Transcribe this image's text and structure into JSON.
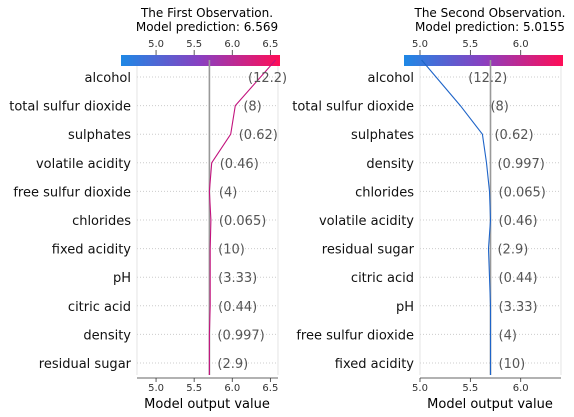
{
  "chart_data": [
    {
      "type": "line",
      "chart_kind": "shap-decision-plot",
      "title_line1": "The First Observation.",
      "title_line2": "Model prediction: 6.569",
      "xlabel": "Model output value",
      "xlim": [
        4.75,
        6.6
      ],
      "xticks": [
        "5.0",
        "5.5",
        "6.0",
        "6.5"
      ],
      "base_value": 5.7,
      "line_color": "#c2127d",
      "features": [
        "alcohol",
        "total sulfur dioxide",
        "sulphates",
        "volatile acidity",
        "free sulfur dioxide",
        "chlorides",
        "fixed acidity",
        "pH",
        "citric acid",
        "density",
        "residual sugar"
      ],
      "feature_values": [
        "(12.2)",
        "(8)",
        "(0.62)",
        "(0.46)",
        "(4)",
        "(0.065)",
        "(10)",
        "(3.33)",
        "(0.44)",
        "(0.997)",
        "(2.9)"
      ],
      "cumulative_output": [
        6.569,
        6.04,
        5.98,
        5.73,
        5.7,
        5.72,
        5.71,
        5.71,
        5.71,
        5.7,
        5.7,
        5.7
      ]
    },
    {
      "type": "line",
      "chart_kind": "shap-decision-plot",
      "title_line1": "The Second Observation.",
      "title_line2": "Model prediction: 5.0155",
      "xlabel": "Model output value",
      "xlim": [
        5.0,
        6.4
      ],
      "xticks": [
        "5.0",
        "5.5",
        "6.0"
      ],
      "base_value": 5.7,
      "line_color": "#1e64c8",
      "features": [
        "alcohol",
        "total sulfur dioxide",
        "sulphates",
        "density",
        "chlorides",
        "volatile acidity",
        "residual sugar",
        "citric acid",
        "pH",
        "free sulfur dioxide",
        "fixed acidity"
      ],
      "feature_values": [
        "(12.2)",
        "(8)",
        "(0.62)",
        "(0.997)",
        "(0.065)",
        "(0.46)",
        "(2.9)",
        "(0.44)",
        "(3.33)",
        "(4)",
        "(10)"
      ],
      "cumulative_output": [
        5.0155,
        5.4,
        5.62,
        5.66,
        5.69,
        5.7,
        5.68,
        5.69,
        5.7,
        5.7,
        5.7,
        5.7
      ]
    }
  ],
  "colors": {
    "bar_low": "#1e88e5",
    "bar_high": "#ff0d57",
    "base_line": "#999999",
    "grid": "#cccccc",
    "feature_value_text": "#555555"
  }
}
